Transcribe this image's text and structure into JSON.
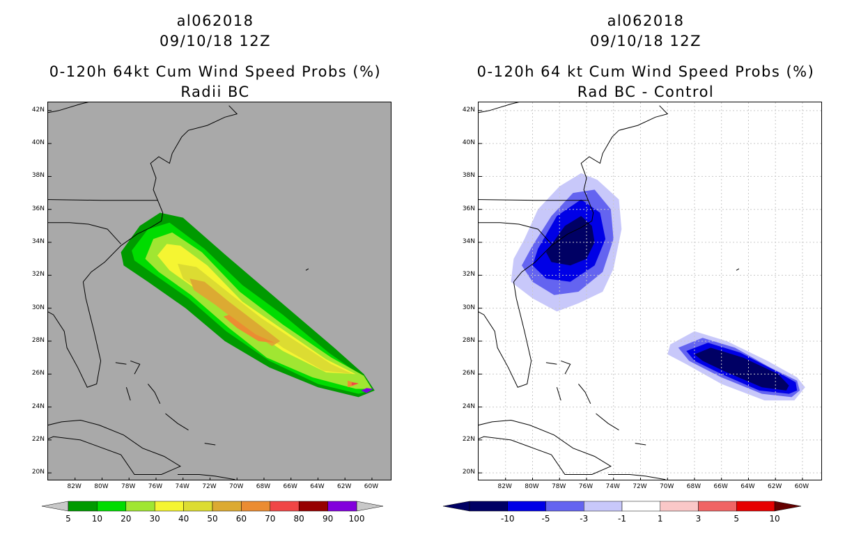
{
  "figure": {
    "colors": {
      "land_fill_left": "#a9a9a9",
      "coast": "#000000",
      "grid": "#c8c8c8"
    }
  },
  "chart_data": [
    {
      "type": "heatmap",
      "title_lines": [
        "al062018",
        "09/10/18 12Z",
        "0-120h 64kt Cum Wind Speed Probs (%)",
        "Radii BC"
      ],
      "x_ticks": [
        "82W",
        "80W",
        "78W",
        "76W",
        "74W",
        "72W",
        "70W",
        "68W",
        "66W",
        "64W",
        "62W",
        "60W"
      ],
      "y_ticks": [
        "42N",
        "40N",
        "38N",
        "36N",
        "34N",
        "32N",
        "30N",
        "28N",
        "26N",
        "24N",
        "22N",
        "20N"
      ],
      "x_range": [
        -84,
        -58.5
      ],
      "y_range": [
        19.5,
        42.5
      ],
      "grid": false,
      "colorbar": {
        "labels": [
          "5",
          "10",
          "20",
          "30",
          "40",
          "50",
          "60",
          "70",
          "80",
          "90",
          "100"
        ],
        "colors": [
          "#009a00",
          "#00dc00",
          "#a0e632",
          "#f5f532",
          "#dcdc32",
          "#dcaa32",
          "#eb8c32",
          "#f04646",
          "#960000",
          "#8200dc"
        ],
        "end_colors": [
          "#c8c8c8",
          "#c8c8c8"
        ]
      },
      "contours": [
        {
          "level": 5,
          "color": "#009a00",
          "points": [
            [
              -78.6,
              33.4
            ],
            [
              -77.2,
              35.0
            ],
            [
              -75.7,
              35.8
            ],
            [
              -74.0,
              35.5
            ],
            [
              -70.8,
              33.2
            ],
            [
              -66.8,
              30.4
            ],
            [
              -62.8,
              27.6
            ],
            [
              -60.6,
              26.0
            ],
            [
              -59.8,
              25.0
            ],
            [
              -61.0,
              24.6
            ],
            [
              -64.0,
              25.2
            ],
            [
              -67.6,
              26.4
            ],
            [
              -70.9,
              28.0
            ],
            [
              -73.8,
              30.0
            ],
            [
              -76.6,
              31.6
            ],
            [
              -78.4,
              32.6
            ]
          ]
        },
        {
          "level": 10,
          "color": "#00dc00",
          "points": [
            [
              -77.8,
              33.5
            ],
            [
              -76.6,
              34.8
            ],
            [
              -75.0,
              35.2
            ],
            [
              -72.4,
              33.6
            ],
            [
              -69.6,
              31.4
            ],
            [
              -66.6,
              29.6
            ],
            [
              -63.2,
              27.3
            ],
            [
              -60.8,
              25.9
            ],
            [
              -60.0,
              25.0
            ],
            [
              -61.0,
              24.8
            ],
            [
              -64.0,
              25.4
            ],
            [
              -67.6,
              26.8
            ],
            [
              -70.8,
              28.6
            ],
            [
              -73.6,
              30.6
            ],
            [
              -76.4,
              32.2
            ],
            [
              -77.6,
              32.9
            ]
          ]
        },
        {
          "level": 20,
          "color": "#a0e632",
          "points": [
            [
              -76.8,
              33.0
            ],
            [
              -76.2,
              34.2
            ],
            [
              -74.8,
              34.6
            ],
            [
              -72.6,
              33.4
            ],
            [
              -69.8,
              31.0
            ],
            [
              -66.6,
              29.0
            ],
            [
              -63.0,
              27.0
            ],
            [
              -60.6,
              25.9
            ],
            [
              -60.0,
              25.1
            ],
            [
              -61.2,
              25.1
            ],
            [
              -64.4,
              25.8
            ],
            [
              -67.8,
              27.0
            ],
            [
              -70.6,
              28.8
            ],
            [
              -73.4,
              30.8
            ],
            [
              -75.8,
              32.2
            ]
          ]
        },
        {
          "level": 30,
          "color": "#f5f532",
          "points": [
            [
              -75.9,
              33.2
            ],
            [
              -75.2,
              33.9
            ],
            [
              -74.2,
              33.8
            ],
            [
              -72.2,
              32.6
            ],
            [
              -69.6,
              30.4
            ],
            [
              -66.6,
              28.7
            ],
            [
              -63.4,
              26.9
            ],
            [
              -61.2,
              26.0
            ],
            [
              -63.4,
              26.1
            ],
            [
              -66.6,
              27.4
            ],
            [
              -69.8,
              29.2
            ],
            [
              -72.6,
              30.9
            ],
            [
              -75.0,
              32.3
            ]
          ]
        },
        {
          "level": 40,
          "color": "#dcdc32",
          "points": [
            [
              -74.4,
              32.7
            ],
            [
              -73.0,
              32.5
            ],
            [
              -70.4,
              30.8
            ],
            [
              -68.2,
              29.4
            ],
            [
              -66.0,
              28.2
            ],
            [
              -63.0,
              26.6
            ],
            [
              -61.4,
              26.0
            ],
            [
              -63.6,
              26.2
            ],
            [
              -66.6,
              27.6
            ],
            [
              -69.6,
              29.4
            ],
            [
              -72.2,
              30.8
            ],
            [
              -74.0,
              31.8
            ]
          ]
        },
        {
          "level": 50,
          "color": "#dcaa32",
          "points": [
            [
              -73.5,
              31.8
            ],
            [
              -72.4,
              31.6
            ],
            [
              -70.6,
              30.4
            ],
            [
              -68.2,
              28.9
            ],
            [
              -66.8,
              28.0
            ],
            [
              -67.4,
              27.7
            ],
            [
              -69.4,
              28.8
            ],
            [
              -71.6,
              30.2
            ],
            [
              -73.2,
              31.1
            ]
          ]
        },
        {
          "level": 60,
          "color": "#eb8c32",
          "points": [
            [
              -70.6,
              29.6
            ],
            [
              -68.6,
              28.4
            ],
            [
              -67.2,
              27.9
            ],
            [
              -68.4,
              28.0
            ],
            [
              -70.0,
              28.8
            ],
            [
              -71.0,
              29.5
            ]
          ]
        },
        {
          "level": 60,
          "color": "#eb8c32",
          "points": [
            [
              -61.8,
              25.6
            ],
            [
              -61.0,
              25.4
            ],
            [
              -61.8,
              25.2
            ]
          ]
        },
        {
          "level": 70,
          "color": "#f04646",
          "points": [
            [
              -61.5,
              25.5
            ],
            [
              -61.0,
              25.45
            ],
            [
              -61.5,
              25.3
            ]
          ]
        },
        {
          "level": 90,
          "color": "#8200dc",
          "points": [
            [
              -60.4,
              25.15
            ],
            [
              -59.9,
              25.1
            ],
            [
              -60.4,
              24.85
            ],
            [
              -60.8,
              25.0
            ]
          ]
        }
      ]
    },
    {
      "type": "heatmap",
      "title_lines": [
        "al062018",
        "09/10/18 12Z",
        "0-120h 64 kt Cum Wind Speed Probs (%)",
        "Rad BC - Control"
      ],
      "x_ticks": [
        "82W",
        "80W",
        "78W",
        "76W",
        "74W",
        "72W",
        "70W",
        "68W",
        "66W",
        "64W",
        "62W",
        "60W"
      ],
      "y_ticks": [
        "42N",
        "40N",
        "38N",
        "36N",
        "34N",
        "32N",
        "30N",
        "28N",
        "26N",
        "24N",
        "22N",
        "20N"
      ],
      "x_range": [
        -84,
        -58.5
      ],
      "y_range": [
        19.5,
        42.5
      ],
      "grid": true,
      "colorbar": {
        "labels": [
          "-10",
          "-5",
          "-3",
          "-1",
          "1",
          "3",
          "5",
          "10"
        ],
        "colors": [
          "#000064",
          "#0000e6",
          "#6464f0",
          "#c8c8fa",
          "#ffffff",
          "#fac8c8",
          "#f06464",
          "#e60000"
        ],
        "end_colors": [
          "#000064",
          "#640000"
        ]
      },
      "contours": [
        {
          "level": -1,
          "color": "#c8c8fa",
          "points": [
            [
              -80.6,
              34.2
            ],
            [
              -79.6,
              36.0
            ],
            [
              -78.0,
              37.4
            ],
            [
              -76.4,
              38.2
            ],
            [
              -75.2,
              37.8
            ],
            [
              -73.6,
              36.6
            ],
            [
              -73.4,
              34.8
            ],
            [
              -74.0,
              32.4
            ],
            [
              -74.8,
              31.0
            ],
            [
              -76.6,
              30.3
            ],
            [
              -78.2,
              29.8
            ],
            [
              -80.0,
              30.6
            ],
            [
              -81.6,
              31.6
            ],
            [
              -81.4,
              33.0
            ]
          ]
        },
        {
          "level": -3,
          "color": "#6464f0",
          "points": [
            [
              -80.0,
              33.8
            ],
            [
              -78.6,
              35.6
            ],
            [
              -77.0,
              37.0
            ],
            [
              -75.4,
              37.2
            ],
            [
              -74.2,
              36.0
            ],
            [
              -74.0,
              34.2
            ],
            [
              -74.8,
              32.2
            ],
            [
              -76.6,
              31.0
            ],
            [
              -78.4,
              30.8
            ],
            [
              -80.0,
              31.6
            ],
            [
              -80.8,
              32.6
            ]
          ]
        },
        {
          "level": -5,
          "color": "#0000e6",
          "points": [
            [
              -79.6,
              33.6
            ],
            [
              -78.2,
              35.6
            ],
            [
              -76.4,
              36.6
            ],
            [
              -75.0,
              35.8
            ],
            [
              -74.6,
              34.2
            ],
            [
              -75.4,
              32.6
            ],
            [
              -77.2,
              31.6
            ],
            [
              -79.0,
              31.8
            ],
            [
              -80.0,
              32.6
            ]
          ]
        },
        {
          "level": -10,
          "color": "#000064",
          "points": [
            [
              -79.0,
              33.4
            ],
            [
              -77.6,
              35.0
            ],
            [
              -76.4,
              35.6
            ],
            [
              -75.6,
              35.0
            ],
            [
              -75.4,
              34.0
            ],
            [
              -76.0,
              33.0
            ],
            [
              -77.2,
              32.6
            ],
            [
              -78.6,
              32.8
            ]
          ]
        },
        {
          "level": -1,
          "color": "#c8c8fa",
          "points": [
            [
              -69.8,
              27.8
            ],
            [
              -68.0,
              28.6
            ],
            [
              -65.6,
              28.0
            ],
            [
              -62.6,
              26.8
            ],
            [
              -60.4,
              25.8
            ],
            [
              -59.8,
              25.2
            ],
            [
              -60.6,
              24.4
            ],
            [
              -62.8,
              24.4
            ],
            [
              -66.0,
              25.4
            ],
            [
              -68.6,
              26.6
            ],
            [
              -70.0,
              27.2
            ]
          ]
        },
        {
          "level": -3,
          "color": "#6464f0",
          "points": [
            [
              -69.2,
              27.6
            ],
            [
              -67.4,
              28.2
            ],
            [
              -65.0,
              27.6
            ],
            [
              -62.4,
              26.4
            ],
            [
              -60.4,
              25.6
            ],
            [
              -60.2,
              25.0
            ],
            [
              -60.8,
              24.6
            ],
            [
              -63.0,
              24.8
            ],
            [
              -66.0,
              25.8
            ],
            [
              -68.4,
              26.8
            ]
          ]
        },
        {
          "level": -5,
          "color": "#0000e6",
          "points": [
            [
              -68.6,
              27.4
            ],
            [
              -67.0,
              27.9
            ],
            [
              -64.6,
              27.3
            ],
            [
              -62.0,
              26.2
            ],
            [
              -60.5,
              25.5
            ],
            [
              -60.4,
              25.0
            ],
            [
              -61.0,
              24.8
            ],
            [
              -63.2,
              25.0
            ],
            [
              -66.0,
              26.0
            ],
            [
              -68.0,
              26.8
            ]
          ]
        },
        {
          "level": -10,
          "color": "#000064",
          "points": [
            [
              -68.0,
              27.2
            ],
            [
              -66.8,
              27.6
            ],
            [
              -64.4,
              27.0
            ],
            [
              -61.8,
              26.0
            ],
            [
              -61.0,
              25.3
            ],
            [
              -61.2,
              25.0
            ],
            [
              -63.0,
              25.2
            ],
            [
              -65.6,
              26.1
            ],
            [
              -67.4,
              26.8
            ]
          ]
        }
      ]
    }
  ]
}
